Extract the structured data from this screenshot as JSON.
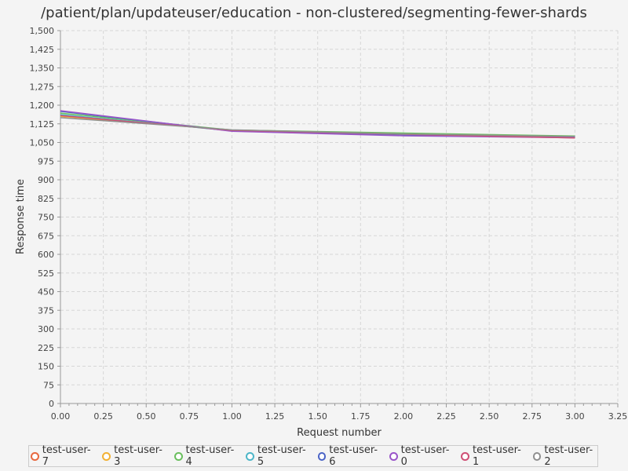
{
  "chart_data": {
    "type": "line",
    "title": "/patient/plan/updateuser/education - non-clustered/segmenting-fewer-shards",
    "xlabel": "Request number",
    "ylabel": "Response time",
    "xlim": [
      0,
      3.25
    ],
    "ylim": [
      0,
      1500
    ],
    "x_ticks": [
      "0.00",
      "0.25",
      "0.50",
      "0.75",
      "1.00",
      "1.25",
      "1.50",
      "1.75",
      "2.00",
      "2.25",
      "2.50",
      "2.75",
      "3.00",
      "3.25"
    ],
    "y_ticks": [
      "0",
      "75",
      "150",
      "225",
      "300",
      "375",
      "450",
      "525",
      "600",
      "675",
      "750",
      "825",
      "900",
      "975",
      "1,050",
      "1,125",
      "1,200",
      "1,275",
      "1,350",
      "1,425",
      "1,500"
    ],
    "grid": true,
    "legend_position": "bottom",
    "x": [
      0,
      1,
      2,
      3
    ],
    "series": [
      {
        "name": "test-user-7",
        "color": "#e8683f",
        "values": [
          1160,
          1098,
          1082,
          1070
        ]
      },
      {
        "name": "test-user-3",
        "color": "#f2b134",
        "values": [
          1155,
          1100,
          1086,
          1072
        ]
      },
      {
        "name": "test-user-4",
        "color": "#6abf5e",
        "values": [
          1168,
          1100,
          1088,
          1076
        ]
      },
      {
        "name": "test-user-5",
        "color": "#4db6c8",
        "values": [
          1162,
          1097,
          1080,
          1073
        ]
      },
      {
        "name": "test-user-6",
        "color": "#4a63c6",
        "values": [
          1175,
          1096,
          1078,
          1071
        ]
      },
      {
        "name": "test-user-0",
        "color": "#9a55c9",
        "values": [
          1178,
          1095,
          1077,
          1069
        ]
      },
      {
        "name": "test-user-1",
        "color": "#cf4f74",
        "values": [
          1158,
          1099,
          1083,
          1068
        ]
      },
      {
        "name": "test-user-2",
        "color": "#8f8f8f",
        "values": [
          1150,
          1101,
          1084,
          1074
        ]
      }
    ]
  }
}
